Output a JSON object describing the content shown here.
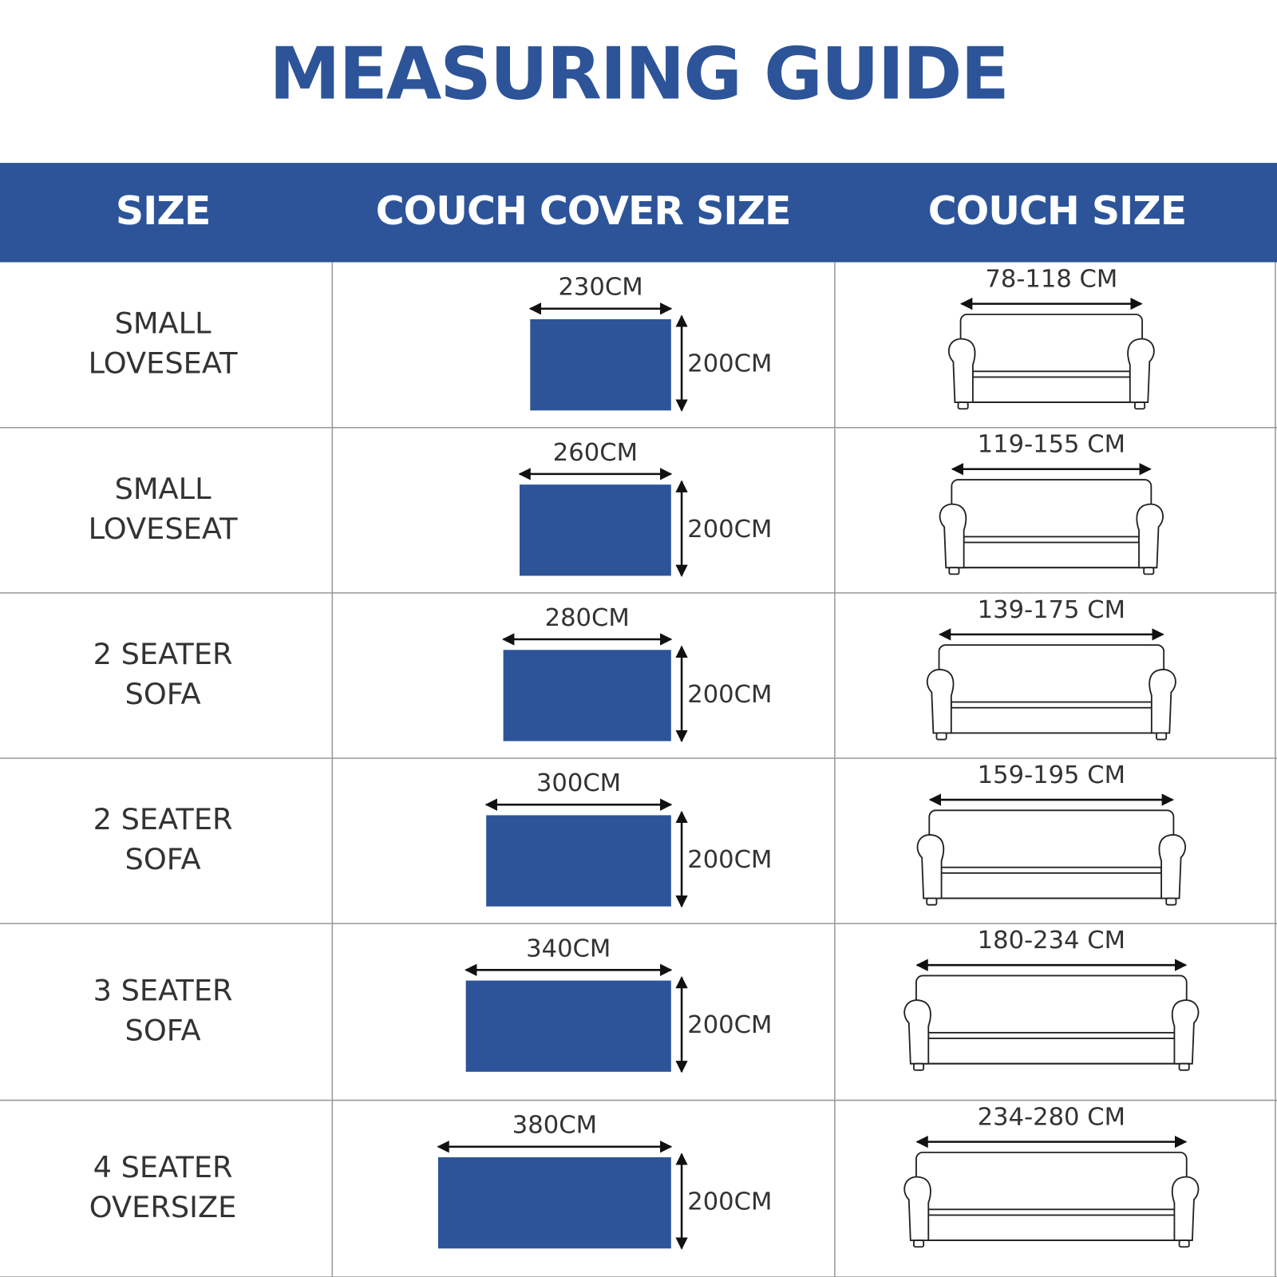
{
  "title": "MEASURING GUIDE",
  "table": {
    "headers": [
      "SIZE",
      "COUCH COVER SIZE",
      "COUCH SIZE"
    ],
    "rows": [
      {
        "size": [
          "SMALL",
          "LOVESEAT"
        ],
        "cover_width": "230CM",
        "cover_height": "200CM",
        "couch_width": "78-118 CM"
      },
      {
        "size": [
          "SMALL",
          "LOVESEAT"
        ],
        "cover_width": "260CM",
        "cover_height": "200CM",
        "couch_width": "119-155 CM"
      },
      {
        "size": [
          "2 SEATER",
          "SOFA"
        ],
        "cover_width": "280CM",
        "cover_height": "200CM",
        "couch_width": "139-175 CM"
      },
      {
        "size": [
          "2 SEATER",
          "SOFA"
        ],
        "cover_width": "300CM",
        "cover_height": "200CM",
        "couch_width": "159-195 CM"
      },
      {
        "size": [
          "3 SEATER",
          "SOFA"
        ],
        "cover_width": "340CM",
        "cover_height": "200CM",
        "couch_width": "180-234 CM"
      },
      {
        "size": [
          "4 SEATER",
          "OVERSIZE"
        ],
        "cover_width": "380CM",
        "cover_height": "200CM",
        "couch_width": "234-280 CM"
      }
    ]
  }
}
